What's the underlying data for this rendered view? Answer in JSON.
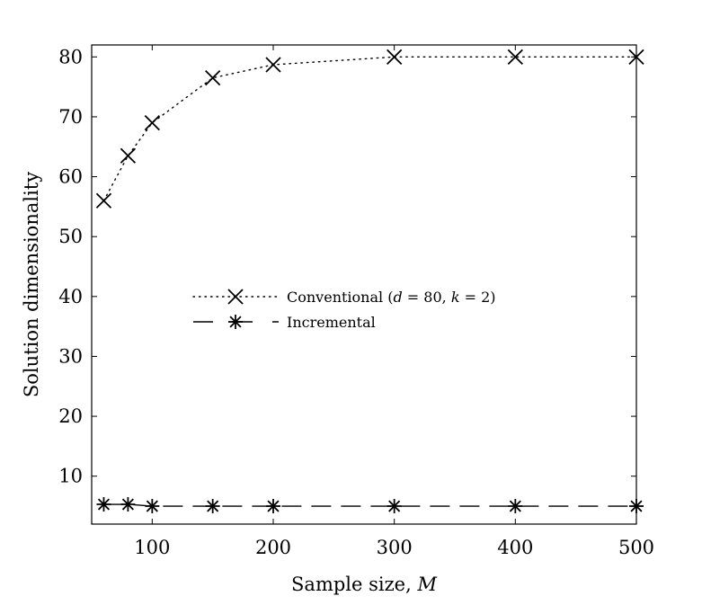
{
  "chart_data": {
    "type": "line",
    "title": "",
    "xlabel": "Sample size, ",
    "xlabel_var": "M",
    "ylabel": "Solution dimensionality",
    "x": [
      60,
      80,
      100,
      150,
      200,
      300,
      400,
      500
    ],
    "xlim": [
      50,
      500
    ],
    "ylim": [
      2,
      82
    ],
    "xticks": [
      100,
      200,
      300,
      400,
      500
    ],
    "yticks": [
      10,
      20,
      30,
      40,
      50,
      60,
      70,
      80
    ],
    "grid": false,
    "legend_position": "center-left",
    "series": [
      {
        "name": "Conventional (d = 80, k = 2)",
        "values": [
          56,
          63.5,
          69,
          76.5,
          78.7,
          80,
          80,
          80
        ],
        "marker": "x",
        "line_style": "dotted",
        "color": "#000000"
      },
      {
        "name": "Incremental",
        "values": [
          5.3,
          5.3,
          5,
          5,
          5,
          5,
          5,
          5
        ],
        "marker": "asterisk",
        "line_style": "dashed",
        "color": "#000000"
      }
    ],
    "legend": {
      "entries": [
        {
          "prefix": "Conventional (",
          "v1": "d",
          "m1": " = 80, ",
          "v2": "k",
          "m2": " = 2)"
        },
        {
          "prefix": "Incremental"
        }
      ]
    }
  }
}
